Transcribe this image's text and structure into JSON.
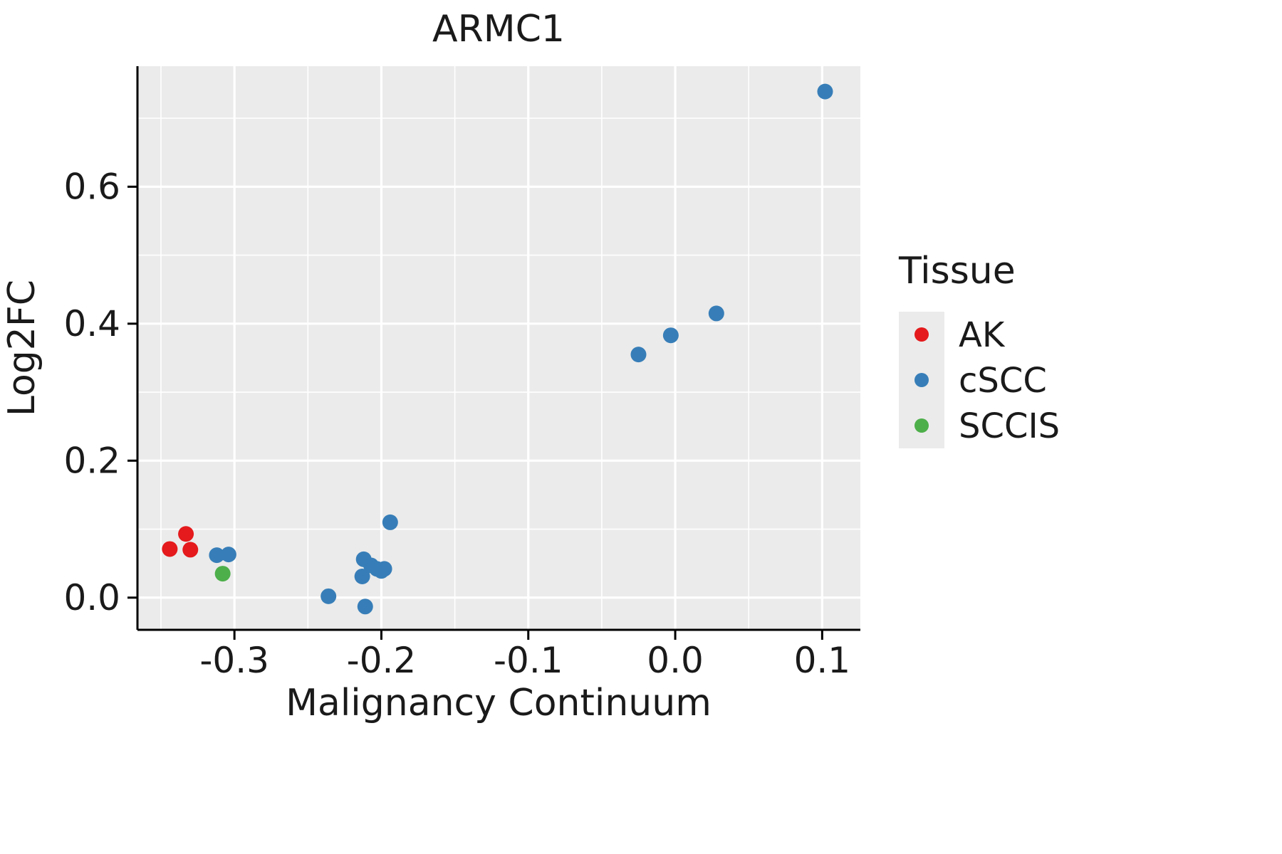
{
  "chart_data": {
    "type": "scatter",
    "title": "ARMC1",
    "xlabel": "Malignancy Continuum",
    "ylabel": "Log2FC",
    "xlim": [
      -0.366,
      0.126
    ],
    "ylim": [
      -0.047,
      0.776
    ],
    "x_ticks": {
      "values": [
        -0.3,
        -0.2,
        -0.1,
        0.0,
        0.1
      ],
      "labels": [
        "-0.3",
        "-0.2",
        "-0.1",
        "0.0",
        "0.1"
      ]
    },
    "y_ticks": {
      "values": [
        0.0,
        0.2,
        0.4,
        0.6
      ],
      "labels": [
        "0.0",
        "0.2",
        "0.4",
        "0.6"
      ]
    },
    "x_minor": [
      -0.35,
      -0.25,
      -0.15,
      -0.05,
      0.05
    ],
    "y_minor": [
      0.1,
      0.3,
      0.5,
      0.7
    ],
    "panel_bg": "#EBEBEB",
    "grid_color": "#FFFFFF",
    "axis_color": "#000000",
    "legend": {
      "title": "Tissue",
      "position": "right"
    },
    "series": [
      {
        "name": "AK",
        "color": "#E41A1C",
        "points": [
          [
            -0.344,
            0.071
          ],
          [
            -0.333,
            0.093
          ],
          [
            -0.33,
            0.07
          ]
        ]
      },
      {
        "name": "cSCC",
        "color": "#377EB8",
        "points": [
          [
            -0.312,
            0.062
          ],
          [
            -0.304,
            0.063
          ],
          [
            -0.236,
            0.002
          ],
          [
            -0.213,
            0.031
          ],
          [
            -0.212,
            0.056
          ],
          [
            -0.211,
            -0.013
          ],
          [
            -0.207,
            0.047
          ],
          [
            -0.203,
            0.042
          ],
          [
            -0.2,
            0.039
          ],
          [
            -0.198,
            0.042
          ],
          [
            -0.194,
            0.11
          ],
          [
            -0.025,
            0.355
          ],
          [
            -0.003,
            0.383
          ],
          [
            0.028,
            0.415
          ],
          [
            0.102,
            0.739
          ]
        ]
      },
      {
        "name": "SCCIS",
        "color": "#4DAF4A",
        "points": [
          [
            -0.308,
            0.035
          ]
        ]
      }
    ]
  }
}
